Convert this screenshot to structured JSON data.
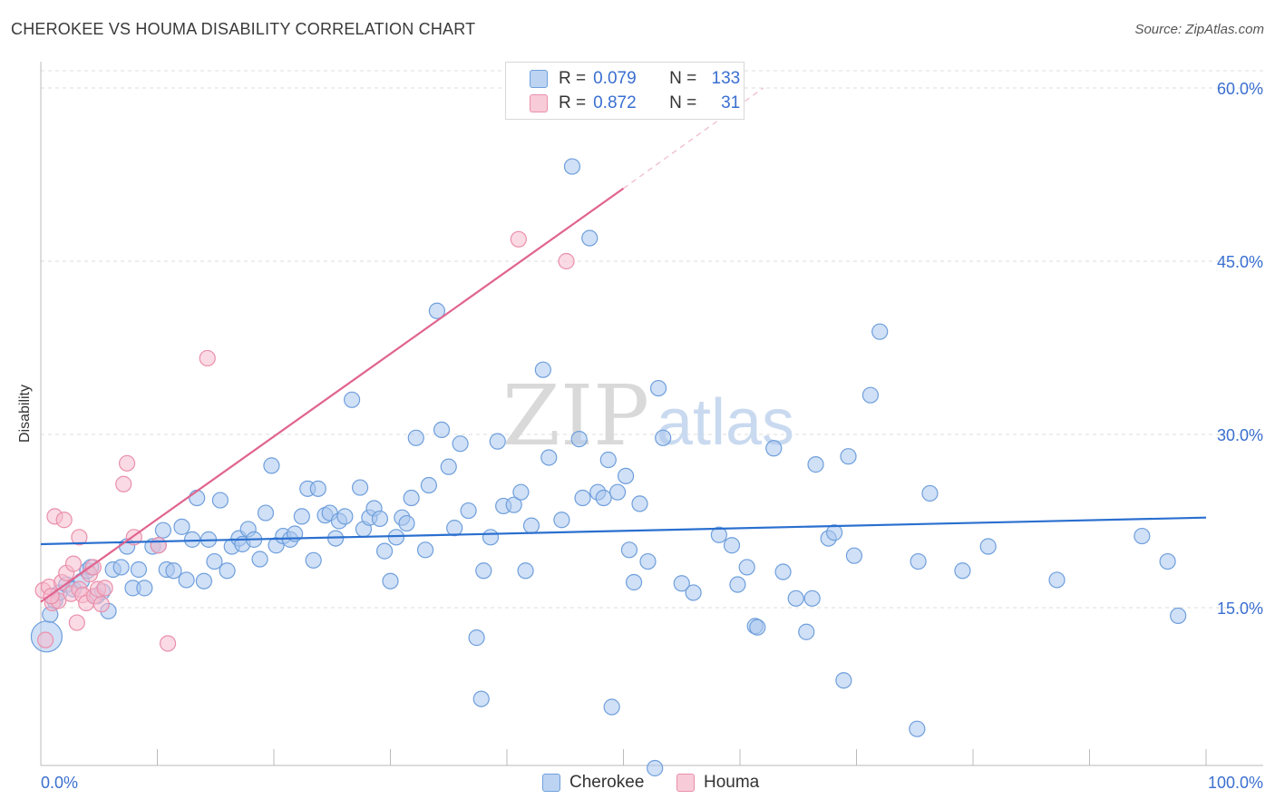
{
  "title": "CHEROKEE VS HOUMA DISABILITY CORRELATION CHART",
  "source": "Source: ZipAtlas.com",
  "watermark": {
    "zip": "ZIP",
    "atlas": "atlas"
  },
  "legend": {
    "rows": [
      {
        "r_label": "R =",
        "r_value": "0.079",
        "n_label": "N =",
        "n_value": "133"
      },
      {
        "r_label": "R =",
        "r_value": "0.872",
        "n_label": "N =",
        "n_value": "31"
      }
    ]
  },
  "bottom_legend": {
    "series1": "Cherokee",
    "series2": "Houma"
  },
  "colors": {
    "cherokee_fill": "#a9c7ee",
    "cherokee_stroke": "#6f9fdc",
    "cherokee_line": "#2a6fcf",
    "houma_fill": "#f6bccd",
    "houma_stroke": "#ea8fab",
    "houma_line": "#e0648e",
    "tick_label": "#3a6fd0",
    "grid": "#dddddd"
  },
  "chart_data": {
    "type": "scatter",
    "title": "CHEROKEE VS HOUMA DISABILITY CORRELATION CHART",
    "xlabel": "",
    "ylabel": "Disability",
    "xlim": [
      0,
      100
    ],
    "ylim": [
      0,
      60
    ],
    "x_tick_labels": [
      "0.0%",
      "100.0%"
    ],
    "y_ticks": [
      15,
      30,
      45,
      60
    ],
    "y_tick_labels": [
      "15.0%",
      "30.0%",
      "45.0%",
      "60.0%"
    ],
    "grid": true,
    "legend_position": "top-center",
    "series": [
      {
        "name": "Cherokee",
        "r": 0.079,
        "n": 133,
        "trend": {
          "x": [
            0,
            100
          ],
          "y": [
            20.5,
            22.8
          ]
        },
        "points": [
          {
            "x": 0.5,
            "y": 12.5,
            "big": true
          },
          {
            "x": 0.8,
            "y": 14.4
          },
          {
            "x": 1.2,
            "y": 15.6
          },
          {
            "x": 1.6,
            "y": 16.3
          },
          {
            "x": 2.2,
            "y": 17.0
          },
          {
            "x": 2.8,
            "y": 16.6
          },
          {
            "x": 3.5,
            "y": 17.3
          },
          {
            "x": 4.0,
            "y": 18.2
          },
          {
            "x": 4.3,
            "y": 18.5
          },
          {
            "x": 4.8,
            "y": 16.0
          },
          {
            "x": 5.3,
            "y": 16.4
          },
          {
            "x": 5.8,
            "y": 14.7
          },
          {
            "x": 6.2,
            "y": 18.3
          },
          {
            "x": 6.9,
            "y": 18.5
          },
          {
            "x": 7.4,
            "y": 20.3
          },
          {
            "x": 7.9,
            "y": 16.7
          },
          {
            "x": 8.4,
            "y": 18.3
          },
          {
            "x": 8.9,
            "y": 16.7
          },
          {
            "x": 9.6,
            "y": 20.3
          },
          {
            "x": 10.1,
            "y": 20.4
          },
          {
            "x": 10.5,
            "y": 21.7
          },
          {
            "x": 10.8,
            "y": 18.3
          },
          {
            "x": 11.4,
            "y": 18.2
          },
          {
            "x": 12.1,
            "y": 22.0
          },
          {
            "x": 12.5,
            "y": 17.4
          },
          {
            "x": 13.0,
            "y": 20.9
          },
          {
            "x": 13.4,
            "y": 24.5
          },
          {
            "x": 14.0,
            "y": 17.3
          },
          {
            "x": 14.4,
            "y": 20.9
          },
          {
            "x": 14.9,
            "y": 19.0
          },
          {
            "x": 15.4,
            "y": 24.3
          },
          {
            "x": 16.0,
            "y": 18.2
          },
          {
            "x": 16.4,
            "y": 20.3
          },
          {
            "x": 17.0,
            "y": 21.0
          },
          {
            "x": 17.3,
            "y": 20.5
          },
          {
            "x": 17.8,
            "y": 21.8
          },
          {
            "x": 18.3,
            "y": 20.9
          },
          {
            "x": 18.8,
            "y": 19.2
          },
          {
            "x": 19.3,
            "y": 23.2
          },
          {
            "x": 19.8,
            "y": 27.3
          },
          {
            "x": 20.2,
            "y": 20.4
          },
          {
            "x": 20.8,
            "y": 21.2
          },
          {
            "x": 21.4,
            "y": 20.9
          },
          {
            "x": 21.8,
            "y": 21.4
          },
          {
            "x": 22.4,
            "y": 22.9
          },
          {
            "x": 22.9,
            "y": 25.3
          },
          {
            "x": 23.4,
            "y": 19.1
          },
          {
            "x": 23.8,
            "y": 25.3
          },
          {
            "x": 24.4,
            "y": 23.0
          },
          {
            "x": 24.8,
            "y": 23.2
          },
          {
            "x": 25.3,
            "y": 21.0
          },
          {
            "x": 25.6,
            "y": 22.5
          },
          {
            "x": 26.1,
            "y": 22.9
          },
          {
            "x": 26.7,
            "y": 33.0
          },
          {
            "x": 27.4,
            "y": 25.4
          },
          {
            "x": 27.7,
            "y": 21.8
          },
          {
            "x": 28.2,
            "y": 22.8
          },
          {
            "x": 28.6,
            "y": 23.6
          },
          {
            "x": 29.1,
            "y": 22.7
          },
          {
            "x": 29.5,
            "y": 19.9
          },
          {
            "x": 30.0,
            "y": 17.3
          },
          {
            "x": 30.5,
            "y": 21.1
          },
          {
            "x": 31.0,
            "y": 22.8
          },
          {
            "x": 31.4,
            "y": 22.3
          },
          {
            "x": 31.8,
            "y": 24.5
          },
          {
            "x": 32.2,
            "y": 29.7
          },
          {
            "x": 33.0,
            "y": 20.0
          },
          {
            "x": 33.3,
            "y": 25.6
          },
          {
            "x": 34.0,
            "y": 40.7
          },
          {
            "x": 34.4,
            "y": 30.4
          },
          {
            "x": 35.0,
            "y": 27.2
          },
          {
            "x": 35.5,
            "y": 21.9
          },
          {
            "x": 36.0,
            "y": 29.2
          },
          {
            "x": 36.7,
            "y": 23.4
          },
          {
            "x": 37.4,
            "y": 12.4
          },
          {
            "x": 37.8,
            "y": 7.1
          },
          {
            "x": 38.0,
            "y": 18.2
          },
          {
            "x": 38.6,
            "y": 21.1
          },
          {
            "x": 39.2,
            "y": 29.4
          },
          {
            "x": 39.7,
            "y": 23.8
          },
          {
            "x": 40.6,
            "y": 23.9
          },
          {
            "x": 41.2,
            "y": 25.0
          },
          {
            "x": 41.6,
            "y": 18.2
          },
          {
            "x": 42.1,
            "y": 22.1
          },
          {
            "x": 43.1,
            "y": 35.6
          },
          {
            "x": 43.6,
            "y": 28.0
          },
          {
            "x": 44.7,
            "y": 22.6
          },
          {
            "x": 45.6,
            "y": 53.2
          },
          {
            "x": 46.2,
            "y": 29.6
          },
          {
            "x": 46.5,
            "y": 24.5
          },
          {
            "x": 47.1,
            "y": 47.0
          },
          {
            "x": 47.8,
            "y": 25.0
          },
          {
            "x": 48.3,
            "y": 24.5
          },
          {
            "x": 48.7,
            "y": 27.8
          },
          {
            "x": 49.0,
            "y": 6.4
          },
          {
            "x": 49.5,
            "y": 25.0
          },
          {
            "x": 50.2,
            "y": 26.4
          },
          {
            "x": 50.5,
            "y": 20.0
          },
          {
            "x": 50.9,
            "y": 17.2
          },
          {
            "x": 51.4,
            "y": 24.0
          },
          {
            "x": 52.1,
            "y": 19.0
          },
          {
            "x": 52.7,
            "y": 1.1
          },
          {
            "x": 53.0,
            "y": 34.0
          },
          {
            "x": 53.4,
            "y": 29.7
          },
          {
            "x": 55.0,
            "y": 17.1
          },
          {
            "x": 56.0,
            "y": 16.3
          },
          {
            "x": 58.2,
            "y": 21.3
          },
          {
            "x": 59.3,
            "y": 20.4
          },
          {
            "x": 59.8,
            "y": 17.0
          },
          {
            "x": 60.6,
            "y": 18.5
          },
          {
            "x": 61.3,
            "y": 13.4
          },
          {
            "x": 61.5,
            "y": 13.3
          },
          {
            "x": 62.9,
            "y": 28.8
          },
          {
            "x": 63.7,
            "y": 18.1
          },
          {
            "x": 64.8,
            "y": 15.8
          },
          {
            "x": 65.7,
            "y": 12.9
          },
          {
            "x": 66.2,
            "y": 15.8
          },
          {
            "x": 66.5,
            "y": 27.4
          },
          {
            "x": 67.6,
            "y": 21.0
          },
          {
            "x": 68.1,
            "y": 21.5
          },
          {
            "x": 68.9,
            "y": 8.7
          },
          {
            "x": 69.3,
            "y": 28.1
          },
          {
            "x": 69.8,
            "y": 19.5
          },
          {
            "x": 71.2,
            "y": 33.4
          },
          {
            "x": 72.0,
            "y": 38.9
          },
          {
            "x": 75.2,
            "y": 4.5
          },
          {
            "x": 75.3,
            "y": 19.0
          },
          {
            "x": 76.3,
            "y": 24.9
          },
          {
            "x": 79.1,
            "y": 18.2
          },
          {
            "x": 81.3,
            "y": 20.3
          },
          {
            "x": 87.2,
            "y": 17.4
          },
          {
            "x": 94.5,
            "y": 21.2
          },
          {
            "x": 96.7,
            "y": 19.0
          },
          {
            "x": 97.6,
            "y": 14.3
          }
        ]
      },
      {
        "name": "Houma",
        "r": 0.872,
        "n": 31,
        "trend": {
          "x": [
            0,
            50
          ],
          "y": [
            15.5,
            51.3
          ]
        },
        "trend_dashed_ext": {
          "x": [
            50,
            62
          ],
          "y": [
            51.3,
            60.0
          ]
        },
        "points": [
          {
            "x": 0.2,
            "y": 16.5
          },
          {
            "x": 0.4,
            "y": 12.2
          },
          {
            "x": 0.7,
            "y": 16.8
          },
          {
            "x": 1.0,
            "y": 15.4
          },
          {
            "x": 1.2,
            "y": 22.9
          },
          {
            "x": 1.5,
            "y": 15.6
          },
          {
            "x": 1.8,
            "y": 17.2
          },
          {
            "x": 2.0,
            "y": 22.6
          },
          {
            "x": 2.2,
            "y": 18.0
          },
          {
            "x": 2.6,
            "y": 16.2
          },
          {
            "x": 2.8,
            "y": 18.8
          },
          {
            "x": 3.1,
            "y": 13.7
          },
          {
            "x": 3.3,
            "y": 16.6
          },
          {
            "x": 3.3,
            "y": 21.1
          },
          {
            "x": 3.6,
            "y": 16.1
          },
          {
            "x": 3.9,
            "y": 15.4
          },
          {
            "x": 4.2,
            "y": 17.9
          },
          {
            "x": 4.5,
            "y": 18.5
          },
          {
            "x": 4.6,
            "y": 16.0
          },
          {
            "x": 4.9,
            "y": 16.6
          },
          {
            "x": 5.2,
            "y": 15.3
          },
          {
            "x": 5.5,
            "y": 16.7
          },
          {
            "x": 7.1,
            "y": 25.7
          },
          {
            "x": 7.4,
            "y": 27.5
          },
          {
            "x": 8.0,
            "y": 21.1
          },
          {
            "x": 10.1,
            "y": 20.4
          },
          {
            "x": 10.9,
            "y": 11.9
          },
          {
            "x": 14.3,
            "y": 36.6
          },
          {
            "x": 41.0,
            "y": 46.9
          },
          {
            "x": 45.1,
            "y": 45.0
          },
          {
            "x": 0.9,
            "y": 16.0
          }
        ]
      }
    ]
  }
}
